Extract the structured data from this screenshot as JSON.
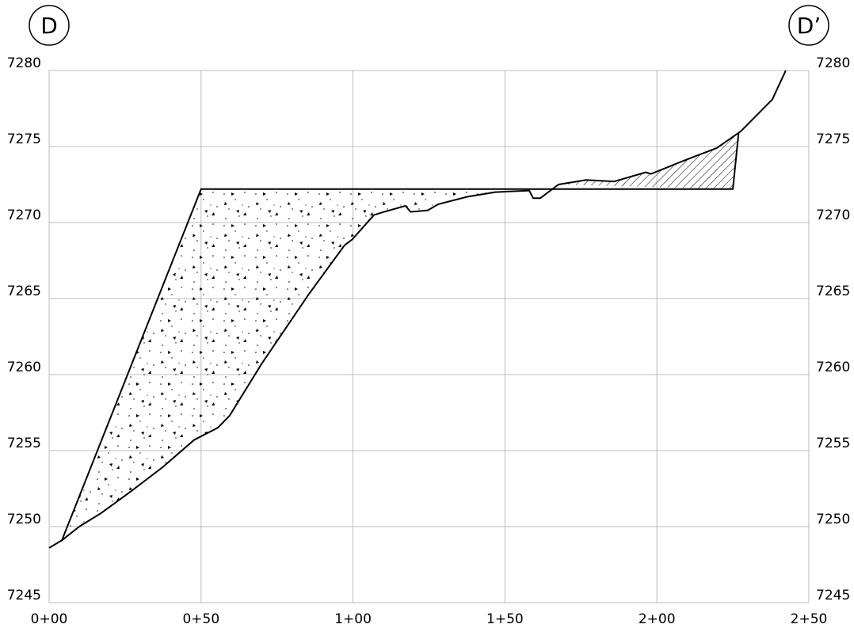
{
  "chart_data": {
    "type": "section",
    "annotations": [
      "D",
      "D’"
    ],
    "xlim": [
      0,
      250
    ],
    "ylim": [
      7245,
      7280
    ],
    "xticks": [
      {
        "value": 0,
        "label": "0+00"
      },
      {
        "value": 50,
        "label": "0+50"
      },
      {
        "value": 100,
        "label": "1+00"
      },
      {
        "value": 150,
        "label": "1+50"
      },
      {
        "value": 200,
        "label": "2+00"
      },
      {
        "value": 250,
        "label": "2+50"
      }
    ],
    "yticks": [
      7245,
      7250,
      7255,
      7260,
      7265,
      7270,
      7275,
      7280
    ],
    "grid": true,
    "series": [
      {
        "color": "#000000",
        "x": [
          0,
          4.2,
          9.9,
          17.2,
          26.8,
          37.3,
          47.7,
          55.5,
          59.4,
          69.9,
          85.5,
          97.2,
          99.8,
          106.9,
          110.2,
          117.3,
          118.9,
          124.6,
          128.0,
          137.7,
          146.8,
          158.0,
          159.3,
          161.6,
          167.6,
          176.7,
          185.9,
          196.3,
          198.1,
          208.0,
          219.7,
          227.6,
          238.0,
          242.4
        ],
        "values": [
          7248.6,
          7249.1,
          7250.0,
          7250.9,
          7252.3,
          7253.9,
          7255.7,
          7256.5,
          7257.3,
          7260.7,
          7265.3,
          7268.5,
          7268.9,
          7270.5,
          7270.7,
          7271.1,
          7270.7,
          7270.8,
          7271.2,
          7271.7,
          7272.0,
          7272.1,
          7271.6,
          7271.6,
          7272.5,
          7272.8,
          7272.7,
          7273.3,
          7273.2,
          7274.0,
          7274.9,
          7276.0,
          7278.1,
          7280.0
        ]
      },
      {
        "color": "#000000",
        "x": [
          4.2,
          50,
          225,
          226.9
        ],
        "values": [
          7249.1,
          7272.2,
          7272.2,
          7275.9
        ]
      }
    ]
  }
}
